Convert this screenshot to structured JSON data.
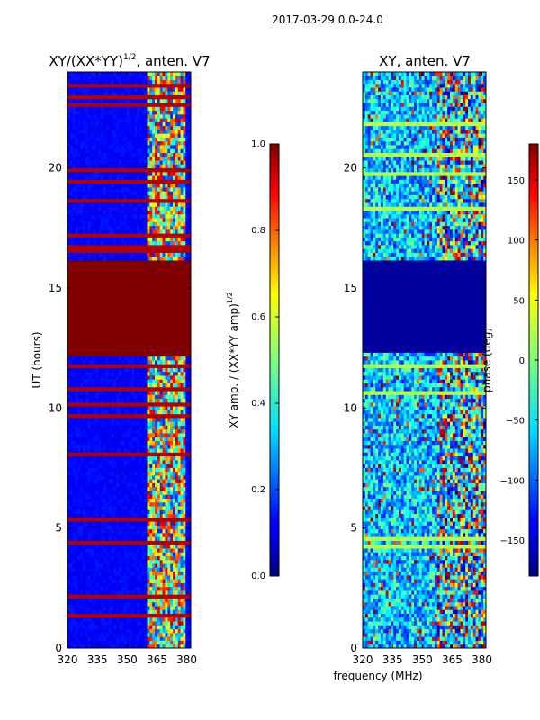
{
  "suptitle": "2017-03-29 0.0-24.0",
  "chart_data": [
    {
      "type": "heatmap",
      "title": "XY/(XX*YY)",
      "title_superscript": "1/2",
      "title_suffix": ", anten. V7",
      "xlabel": "",
      "ylabel": "UT (hours)",
      "xlim": [
        320,
        382
      ],
      "ylim": [
        0,
        24
      ],
      "xticks": [
        320,
        335,
        350,
        365,
        380
      ],
      "yticks": [
        0,
        5,
        10,
        15,
        20
      ],
      "colormap": "jet",
      "colorbar": {
        "label": "XY amp. / (XX*YY amp)",
        "label_superscript": "1/2",
        "range": [
          0.0,
          1.0
        ],
        "ticks": [
          "0.0",
          "0.2",
          "0.4",
          "0.6",
          "0.8",
          "1.0"
        ],
        "tick_values": [
          0.0,
          0.2,
          0.4,
          0.6,
          0.8,
          1.0
        ]
      },
      "features": {
        "saturated_band_hours": [
          12.2,
          16.2
        ],
        "high_value_channels_mhz": [
          360,
          380
        ],
        "background_level": 0.1
      }
    },
    {
      "type": "heatmap",
      "title": "XY, anten. V7",
      "xlabel": "frequency (MHz)",
      "ylabel": "",
      "xlim": [
        320,
        382
      ],
      "ylim": [
        0,
        24
      ],
      "xticks": [
        320,
        335,
        350,
        365,
        380
      ],
      "yticks": [
        0,
        5,
        10,
        15,
        20
      ],
      "colormap": "jet",
      "colorbar": {
        "label": "phase (deg)",
        "range": [
          -180,
          180
        ],
        "ticks": [
          "150",
          "100",
          "50",
          "0",
          "−50",
          "−100",
          "−150"
        ],
        "tick_values": [
          150,
          100,
          50,
          0,
          -50,
          -100,
          -150
        ]
      },
      "features": {
        "flat_phase_band_hours": [
          12.3,
          16.2
        ],
        "flat_phase_value_deg": -170,
        "band_edge_rows_hours": [
          16.3,
          12.2,
          11.9
        ]
      }
    }
  ]
}
